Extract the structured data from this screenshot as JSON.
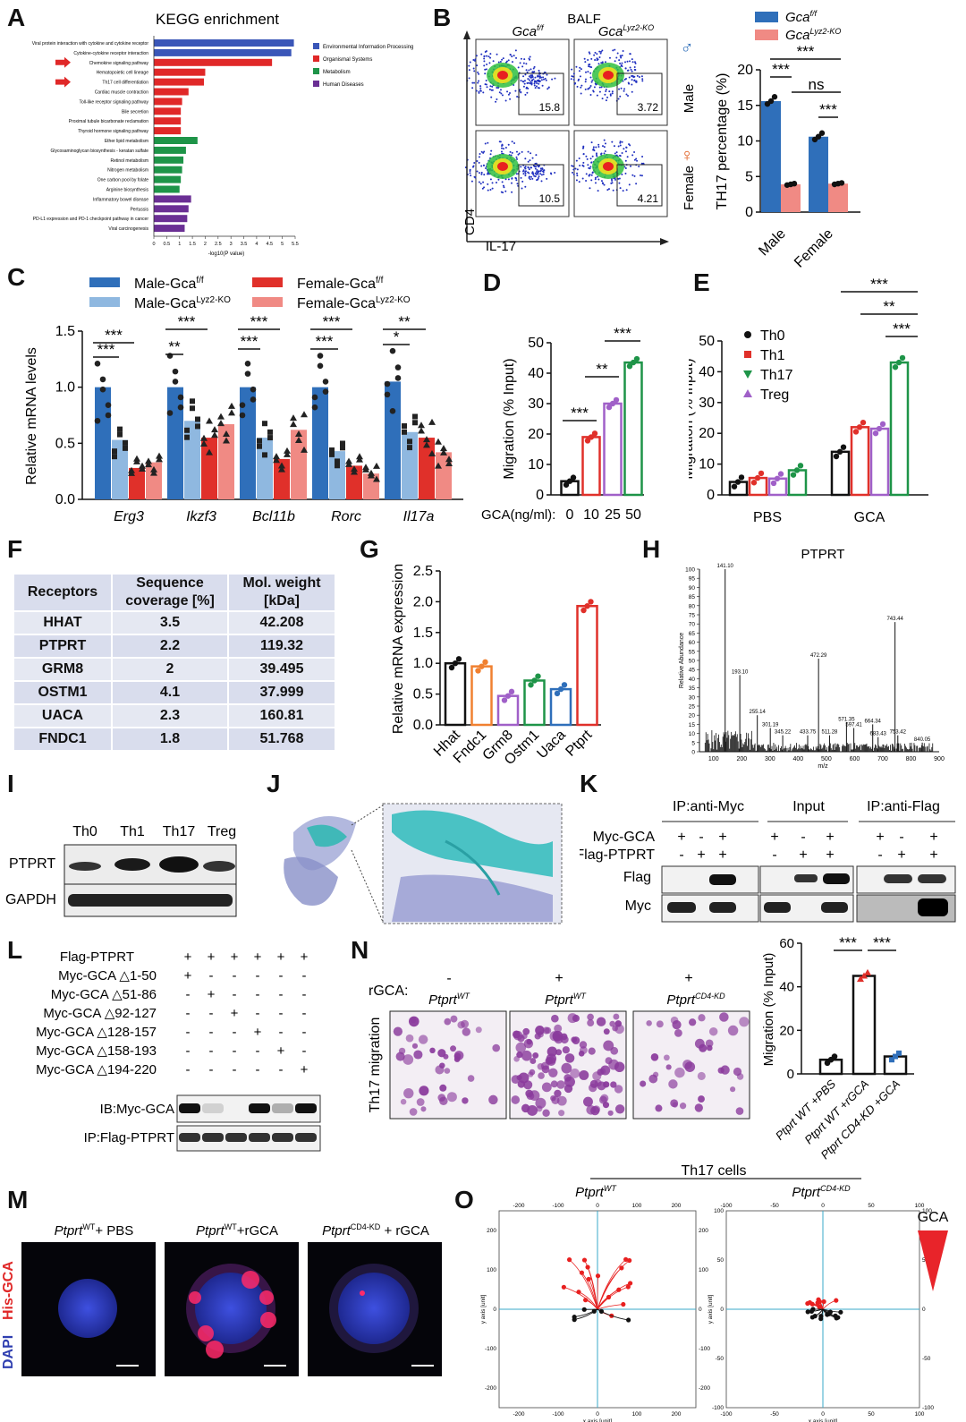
{
  "panel_letters": [
    "A",
    "B",
    "C",
    "D",
    "E",
    "F",
    "G",
    "H",
    "I",
    "J",
    "K",
    "L",
    "M",
    "N",
    "O"
  ],
  "colors": {
    "blue": "#2f6fba",
    "lightblue": "#8fb8e0",
    "red": "#e0302a",
    "salmon": "#f08a84",
    "green": "#1e9448",
    "purple": "#a060c8",
    "orange": "#f08030",
    "darkred": "#e8242a"
  },
  "chart_data": [
    {
      "panel": "A",
      "type": "bar",
      "orientation": "horizontal",
      "title": "KEGG enrichment",
      "xlabel": "-log10(P value)",
      "xlim": [
        0,
        5.5
      ],
      "xticks": [
        0,
        0.5,
        1,
        1.5,
        2,
        2.5,
        3,
        3.5,
        4,
        4.5,
        5,
        5.5
      ],
      "categories": [
        "Viral protein interaction with cytokine and cytokine receptor",
        "Cytokine-cytokine receptor interaction",
        "Chemokine signaling pathway",
        "Hematopoietic cell lineage",
        "Th17 cell differentiation",
        "Cardiac muscle contraction",
        "Toll-like receptor signaling pathway",
        "Bile secretion",
        "Proximal tubule bicarbonate reclamation",
        "Thyroid hormone signaling pathway",
        "Ether lipid metabolism",
        "Glycosaminoglycan biosynthesis - keratan sulfate",
        "Retinol metabolism",
        "Nitrogen metabolism",
        "One carbon pool by folate",
        "Arginine biosynthesis",
        "Inflammatory bowel disease",
        "Pertussis",
        "PD-L1 expression and PD-1 checkpoint pathway in cancer",
        "Viral carcinogenesis"
      ],
      "values": [
        5.45,
        5.35,
        4.6,
        2.0,
        1.95,
        1.35,
        1.1,
        1.05,
        1.05,
        1.05,
        1.7,
        1.25,
        1.15,
        1.1,
        1.05,
        1.0,
        1.45,
        1.35,
        1.3,
        1.2
      ],
      "groups": [
        0,
        0,
        1,
        1,
        1,
        1,
        1,
        1,
        1,
        1,
        2,
        2,
        2,
        2,
        2,
        2,
        3,
        3,
        3,
        3
      ],
      "legend": [
        "Environmental Information Processing",
        "Organismal Systems",
        "Metabolism",
        "Human Diseases"
      ],
      "legend_colors": [
        "#3a56b8",
        "#e02828",
        "#1e9448",
        "#6a2f94"
      ]
    },
    {
      "panel": "B",
      "type": "bar",
      "ylabel": "TH17 percentage (%)",
      "ylim": [
        0,
        20
      ],
      "yticks": [
        0,
        5,
        10,
        15,
        20
      ],
      "categories": [
        "Male",
        "Female"
      ],
      "series": [
        {
          "name": "Gca",
          "sup": "f/f",
          "values": [
            15.6,
            10.6
          ]
        },
        {
          "name": "Gca",
          "sup": "Lyz2-KO",
          "values": [
            3.9,
            4.0
          ]
        }
      ],
      "significance": [
        "***",
        "***",
        "***",
        "ns"
      ],
      "flow": {
        "title": "BALF",
        "cols": [
          "Gca",
          "Gca"
        ],
        "col_sups": [
          "f/f",
          "Lyz2-KO"
        ],
        "rows": [
          "Male",
          "Female"
        ],
        "values": [
          "15.8",
          "3.72",
          "10.5",
          "4.21"
        ],
        "ylabel": "CD4",
        "xlabel": "IL-17"
      }
    },
    {
      "panel": "C",
      "type": "bar",
      "ylabel": "Relative mRNA levels",
      "ylim": [
        0,
        1.5
      ],
      "yticks": [
        0,
        0.5,
        1.0,
        1.5
      ],
      "categories": [
        "Erg3",
        "Ikzf3",
        "Bcl11b",
        "Rorc",
        "Il17a"
      ],
      "series": [
        {
          "name": "Male-Gca",
          "sup": "f/f",
          "values": [
            1.0,
            1.0,
            1.0,
            1.0,
            1.05
          ]
        },
        {
          "name": "Male-Gca",
          "sup": "Lyz2-KO",
          "values": [
            0.53,
            0.7,
            0.55,
            0.43,
            0.6
          ]
        },
        {
          "name": "Female-Gca",
          "sup": "f/f",
          "values": [
            0.28,
            0.55,
            0.36,
            0.3,
            0.55
          ]
        },
        {
          "name": "Female-Gca",
          "sup": "Lyz2-KO",
          "values": [
            0.33,
            0.67,
            0.62,
            0.23,
            0.42
          ]
        }
      ],
      "significance": [
        "***",
        "***",
        "***",
        "**",
        "***",
        "***",
        "***",
        "***",
        "**",
        "*"
      ]
    },
    {
      "panel": "D",
      "type": "bar",
      "ylabel": "Migration (% Input)",
      "xlabel": "GCA(ng/ml):",
      "ylim": [
        0,
        50
      ],
      "yticks": [
        0,
        10,
        20,
        30,
        40,
        50
      ],
      "categories": [
        "0",
        "10",
        "25",
        "50"
      ],
      "values": [
        4.5,
        19,
        30,
        43.5
      ],
      "significance": [
        "***",
        "**",
        "***"
      ]
    },
    {
      "panel": "E",
      "type": "bar",
      "ylabel": "Migration (% Input)",
      "ylim": [
        0,
        50
      ],
      "yticks": [
        0,
        10,
        20,
        30,
        40,
        50
      ],
      "categories": [
        "PBS",
        "GCA"
      ],
      "series": [
        {
          "name": "Th0",
          "values": [
            4.2,
            14
          ]
        },
        {
          "name": "Th1",
          "values": [
            5.5,
            22
          ]
        },
        {
          "name": "Th17",
          "values": [
            8,
            43
          ]
        },
        {
          "name": "Treg",
          "values": [
            5.3,
            21.5
          ]
        }
      ],
      "significance": [
        "***",
        "**",
        "***"
      ]
    },
    {
      "panel": "F",
      "type": "table",
      "columns": [
        "Receptors",
        "Sequence coverage [%]",
        "Mol. weight [kDa]"
      ],
      "rows": [
        [
          "HHAT",
          "3.5",
          "42.208"
        ],
        [
          "PTPRT",
          "2.2",
          "119.32"
        ],
        [
          "GRM8",
          "2",
          "39.495"
        ],
        [
          "OSTM1",
          "4.1",
          "37.999"
        ],
        [
          "UACA",
          "2.3",
          "160.81"
        ],
        [
          "FNDC1",
          "1.8",
          "51.768"
        ]
      ]
    },
    {
      "panel": "G",
      "type": "bar",
      "ylabel": "Relative mRNA expression",
      "ylim": [
        0,
        2.5
      ],
      "yticks": [
        0,
        0.5,
        1.0,
        1.5,
        2.0,
        2.5
      ],
      "categories": [
        "Hhat",
        "Fndc1",
        "Grm8",
        "Ostm1",
        "Uaca",
        "Ptprt"
      ],
      "values": [
        1.0,
        0.95,
        0.47,
        0.72,
        0.58,
        1.93
      ]
    },
    {
      "panel": "H",
      "type": "bar",
      "title": "PTPRT",
      "ylabel": "Relative Abundance",
      "xlabel": "m/z",
      "xlim": [
        50,
        900
      ],
      "ylim": [
        0,
        100
      ],
      "xticks": [
        100,
        200,
        300,
        400,
        500,
        600,
        700,
        800,
        900
      ],
      "yticks": [
        0,
        5,
        10,
        15,
        20,
        25,
        30,
        35,
        40,
        45,
        50,
        55,
        60,
        65,
        70,
        75,
        80,
        85,
        90,
        95,
        100
      ],
      "peaks": [
        {
          "mz": 141.1,
          "i": 100,
          "label": "141.10"
        },
        {
          "mz": 193.1,
          "i": 42,
          "label": "193.10"
        },
        {
          "mz": 255.14,
          "i": 20,
          "label": "255.14"
        },
        {
          "mz": 301.19,
          "i": 13,
          "label": "301.19"
        },
        {
          "mz": 345.22,
          "i": 9,
          "label": "345.22"
        },
        {
          "mz": 433.75,
          "i": 9,
          "label": "433.75"
        },
        {
          "mz": 472.29,
          "i": 51,
          "label": "472.29"
        },
        {
          "mz": 511.28,
          "i": 9,
          "label": "511.28"
        },
        {
          "mz": 571.35,
          "i": 16,
          "label": "571.35"
        },
        {
          "mz": 597.41,
          "i": 13,
          "label": "597.41"
        },
        {
          "mz": 664.34,
          "i": 15,
          "label": "664.34"
        },
        {
          "mz": 683.43,
          "i": 8,
          "label": "683.43"
        },
        {
          "mz": 743.44,
          "i": 71,
          "label": "743.44"
        },
        {
          "mz": 753.42,
          "i": 9,
          "label": "753.42"
        },
        {
          "mz": 840.05,
          "i": 5,
          "label": "840.05"
        }
      ]
    },
    {
      "panel": "N",
      "type": "bar",
      "ylabel": "Migration (% Input)",
      "ylim": [
        0,
        60
      ],
      "yticks": [
        0,
        20,
        40,
        60
      ],
      "categories": [
        "Ptprt WT +PBS",
        "Ptprt WT +rGCA",
        "Ptprt CD4-KD +GCA"
      ],
      "values": [
        6.5,
        45,
        8
      ],
      "significance": [
        "***",
        "***"
      ]
    },
    {
      "panel": "O",
      "type": "scatter",
      "title": "Th17 cells",
      "xlabel": "x axis [unit]",
      "ylabel": "y axis [unit]",
      "plots": [
        {
          "name": "Ptprt",
          "sup": "WT",
          "xlim": [
            -250,
            250
          ],
          "ylim": [
            -250,
            250
          ],
          "ticks": [
            -200,
            -100,
            0,
            100,
            200
          ]
        },
        {
          "name": "Ptprt",
          "sup": "CD4-KD",
          "xlim": [
            -100,
            100
          ],
          "ylim": [
            -100,
            100
          ],
          "ticks": [
            -100,
            -50,
            0,
            50,
            100
          ]
        }
      ],
      "gradient_label": "GCA"
    }
  ],
  "blots": {
    "I": {
      "cols": [
        "Th0",
        "Th1",
        "Th17",
        "Treg"
      ],
      "rows": [
        "PTPRT",
        "GAPDH"
      ]
    },
    "K": {
      "headers": [
        "IP:anti-Myc",
        "Input",
        "IP:anti-Flag"
      ],
      "rows": [
        "Myc-GCA",
        "Flag-PTPRT"
      ],
      "bands": [
        "Flag",
        "Myc"
      ],
      "signs": [
        [
          "+",
          "-",
          "+"
        ],
        [
          "-",
          "+",
          "+"
        ]
      ]
    },
    "L": {
      "rows": [
        "Flag-PTPRT",
        "Myc-GCA △1-50",
        "Myc-GCA △51-86",
        "Myc-GCA △92-127",
        "Myc-GCA △128-157",
        "Myc-GCA △158-193",
        "Myc-GCA △194-220"
      ],
      "bands": [
        "IB:Myc-GCA",
        "IP:Flag-PTPRT"
      ],
      "signs": [
        [
          "+",
          "+",
          "+",
          "+",
          "+",
          "+"
        ],
        [
          "+",
          "-",
          "-",
          "-",
          "-",
          "-"
        ],
        [
          "-",
          "+",
          "-",
          "-",
          "-",
          "-"
        ],
        [
          "-",
          "-",
          "+",
          "-",
          "-",
          "-"
        ],
        [
          "-",
          "-",
          "-",
          "+",
          "-",
          "-"
        ],
        [
          "-",
          "-",
          "-",
          "-",
          "+",
          "-"
        ],
        [
          "-",
          "-",
          "-",
          "-",
          "-",
          "+"
        ]
      ]
    }
  },
  "microscopy": {
    "M": {
      "titles": [
        "Ptprt WT+ PBS",
        "Ptprt WT+rGCA",
        "Ptprt CD4-KD + rGCA"
      ],
      "ylabel_a": "DAPI",
      "ylabel_b": "His-GCA"
    },
    "N": {
      "rgca_label": "rGCA:",
      "signs": [
        "-",
        "+",
        "+"
      ],
      "titles": [
        "Ptprt WT",
        "Ptprt WT",
        "Ptprt CD4-KD"
      ],
      "ylabel": "Th17 migration"
    }
  }
}
